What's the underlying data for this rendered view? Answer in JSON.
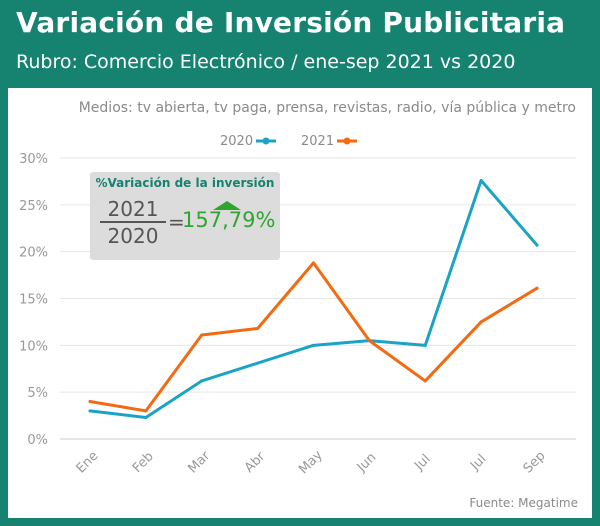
{
  "header": {
    "title": "Variación de Inversión Publicitaria",
    "subtitle": "Rubro: Comercio Electrónico / ene-sep 2021 vs 2020"
  },
  "note": "Medios: tv abierta, tv paga, prensa, revistas, radio, vía pública y metro",
  "source": "Fuente: Megatime",
  "callout": {
    "title": "%Variación de la inversión",
    "numerator": "2021",
    "denominator": "2020",
    "equals": "=",
    "value": "157,79%"
  },
  "colors": {
    "background": "#168270",
    "series_2020": "#1ba3c6",
    "series_2021": "#f26a12",
    "positive": "#2fa52f"
  },
  "chart_data": {
    "type": "line",
    "categories": [
      "Ene",
      "Feb",
      "Mar",
      "Abr",
      "May",
      "Jun",
      "Jul",
      "Jul",
      "Sep"
    ],
    "series": [
      {
        "name": "2020",
        "values": [
          3.0,
          2.3,
          6.2,
          8.1,
          10.0,
          10.5,
          10.0,
          27.6,
          20.7
        ]
      },
      {
        "name": "2021",
        "values": [
          4.0,
          3.0,
          11.1,
          11.8,
          18.8,
          10.5,
          6.2,
          12.5,
          16.1
        ]
      }
    ],
    "y_ticks": [
      "0%",
      "5%",
      "10%",
      "15%",
      "20%",
      "25%",
      "30%"
    ],
    "ylim": [
      0,
      30
    ],
    "grid": true,
    "legend": "top-center"
  }
}
